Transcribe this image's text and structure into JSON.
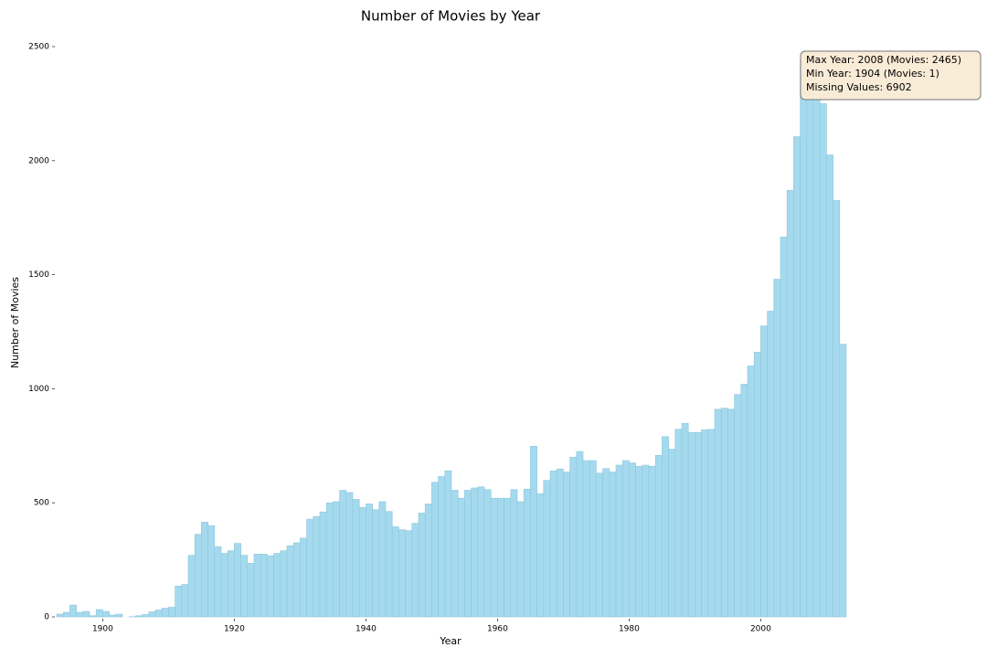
{
  "chart_data": {
    "type": "histogram",
    "title": "Number of Movies by Year",
    "x_label": "Year",
    "y_label": "Number of Movies",
    "bins": [
      1893,
      1894,
      1895,
      1896,
      1897,
      1898,
      1899,
      1900,
      1901,
      1902,
      1903,
      1904,
      1905,
      1906,
      1907,
      1908,
      1909,
      1910,
      1911,
      1912,
      1913,
      1914,
      1915,
      1916,
      1917,
      1918,
      1919,
      1920,
      1921,
      1922,
      1923,
      1924,
      1925,
      1926,
      1927,
      1928,
      1929,
      1930,
      1931,
      1932,
      1933,
      1934,
      1935,
      1936,
      1937,
      1938,
      1939,
      1940,
      1941,
      1942,
      1943,
      1944,
      1945,
      1946,
      1947,
      1948,
      1949,
      1950,
      1951,
      1952,
      1953,
      1954,
      1955,
      1956,
      1957,
      1958,
      1959,
      1960,
      1961,
      1962,
      1963,
      1964,
      1965,
      1966,
      1967,
      1968,
      1969,
      1970,
      1971,
      1972,
      1973,
      1974,
      1975,
      1976,
      1977,
      1978,
      1979,
      1980,
      1981,
      1982,
      1983,
      1984,
      1985,
      1986,
      1987,
      1988,
      1989,
      1990,
      1991,
      1992,
      1993,
      1994,
      1995,
      1996,
      1997,
      1998,
      1999,
      2000,
      2001,
      2002,
      2003,
      2004,
      2005,
      2006,
      2007,
      2008,
      2009,
      2010,
      2011,
      2012,
      2013
    ],
    "values": [
      12,
      20,
      52,
      20,
      24,
      5,
      32,
      24,
      8,
      12,
      0,
      1,
      5,
      10,
      22,
      30,
      38,
      42,
      135,
      142,
      270,
      362,
      415,
      400,
      308,
      278,
      290,
      322,
      270,
      235,
      275,
      275,
      268,
      278,
      290,
      312,
      325,
      345,
      428,
      440,
      460,
      500,
      505,
      555,
      545,
      515,
      480,
      495,
      470,
      505,
      462,
      395,
      382,
      378,
      410,
      455,
      495,
      590,
      615,
      640,
      555,
      520,
      555,
      565,
      570,
      558,
      520,
      520,
      520,
      558,
      505,
      560,
      748,
      540,
      598,
      640,
      648,
      635,
      700,
      725,
      685,
      685,
      630,
      650,
      635,
      665,
      685,
      675,
      660,
      665,
      660,
      708,
      790,
      735,
      822,
      848,
      808,
      808,
      820,
      822,
      910,
      915,
      910,
      975,
      1020,
      1100,
      1160,
      1275,
      1340,
      1480,
      1665,
      1870,
      2105,
      2440,
      2440,
      2465,
      2250,
      2025,
      1825,
      1195
    ],
    "color": "#a5daee",
    "edgecolor": "#8cc6dc",
    "xlim": [
      1893,
      2013
    ],
    "ylim": [
      0,
      2600
    ],
    "xticks": [
      1900,
      1920,
      1940,
      1960,
      1980,
      2000
    ],
    "yticks": [
      0,
      500,
      1000,
      1500,
      2000,
      2500
    ],
    "annotation": [
      "Max Year: 2008 (Movies: 2465)",
      "Min Year: 1904 (Movies: 1)",
      "Missing Values: 6902"
    ]
  }
}
